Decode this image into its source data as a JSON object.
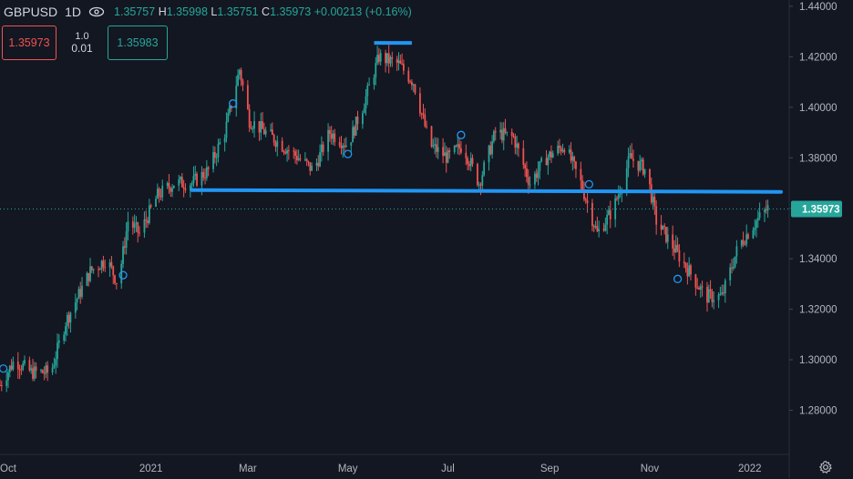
{
  "legend": {
    "symbol": "GBPUSD",
    "interval": "1D",
    "ohlc_text": "1.35757",
    "high_key": "H",
    "high": "1.35998",
    "low_key": "L",
    "low": "1.35751",
    "close_key": "C",
    "close": "1.35973",
    "change": "+0.00213 (+0.16%)"
  },
  "trade": {
    "sell_price": "1.35973",
    "lot": "1.0",
    "spread": "0.01",
    "buy_price": "1.35983"
  },
  "icons": {
    "eye": "eye-icon",
    "gear": "gear-icon"
  },
  "colors": {
    "background": "#131722",
    "up": "#26a69a",
    "down": "#ef5350",
    "level_line": "#2196f3",
    "price_tag": "#26a69a"
  },
  "chart_data": {
    "type": "candlestick",
    "y_ticks": [
      "1.44000",
      "1.42000",
      "1.40000",
      "1.38000",
      "1.36000",
      "1.34000",
      "1.32000",
      "1.30000",
      "1.28000"
    ],
    "y_tick_values": [
      1.44,
      1.42,
      1.4,
      1.38,
      1.36,
      1.34,
      1.32,
      1.3,
      1.28
    ],
    "ylim": [
      1.2625,
      1.4425
    ],
    "x_labels": [
      "Oct",
      "2021",
      "Mar",
      "May",
      "Jul",
      "Sep",
      "Nov",
      "2022"
    ],
    "x_label_dates": [
      "2020-10-01",
      "2021-01-01",
      "2021-03-01",
      "2021-05-01",
      "2021-07-01",
      "2021-09-01",
      "2021-11-01",
      "2022-01-01"
    ],
    "xlim": [
      "2020-10-01",
      "2022-01-25"
    ],
    "last_price": "1.35973",
    "last_price_value": 1.35973,
    "horizontal_line": {
      "start": "2021-01-26",
      "end": "2022-01-20",
      "value": 1.3665
    },
    "top_segment": {
      "start": "2021-05-17",
      "end": "2021-06-09",
      "value": 1.4255
    },
    "markers": [
      {
        "date": "2020-10-03",
        "value": 1.2965
      },
      {
        "date": "2020-12-15",
        "value": 1.3335
      },
      {
        "date": "2021-02-20",
        "value": 1.4015
      },
      {
        "date": "2021-05-01",
        "value": 1.3815
      },
      {
        "date": "2021-07-09",
        "value": 1.389
      },
      {
        "date": "2021-09-25",
        "value": 1.3695
      },
      {
        "date": "2021-11-18",
        "value": 1.332
      }
    ],
    "anchors": [
      [
        "2020-10-01",
        1.29
      ],
      [
        "2020-10-10",
        1.3
      ],
      [
        "2020-10-20",
        1.295
      ],
      [
        "2020-11-01",
        1.295
      ],
      [
        "2020-11-10",
        1.315
      ],
      [
        "2020-11-25",
        1.335
      ],
      [
        "2020-12-05",
        1.34
      ],
      [
        "2020-12-12",
        1.33
      ],
      [
        "2020-12-18",
        1.355
      ],
      [
        "2020-12-25",
        1.35
      ],
      [
        "2021-01-05",
        1.365
      ],
      [
        "2021-01-15",
        1.37
      ],
      [
        "2021-01-26",
        1.37
      ],
      [
        "2021-02-05",
        1.375
      ],
      [
        "2021-02-15",
        1.39
      ],
      [
        "2021-02-24",
        1.415
      ],
      [
        "2021-03-02",
        1.395
      ],
      [
        "2021-03-12",
        1.39
      ],
      [
        "2021-03-22",
        1.385
      ],
      [
        "2021-04-01",
        1.38
      ],
      [
        "2021-04-10",
        1.375
      ],
      [
        "2021-04-20",
        1.39
      ],
      [
        "2021-05-01",
        1.385
      ],
      [
        "2021-05-10",
        1.4
      ],
      [
        "2021-05-20",
        1.42
      ],
      [
        "2021-06-01",
        1.417
      ],
      [
        "2021-06-10",
        1.41
      ],
      [
        "2021-06-20",
        1.385
      ],
      [
        "2021-07-01",
        1.38
      ],
      [
        "2021-07-10",
        1.385
      ],
      [
        "2021-07-20",
        1.37
      ],
      [
        "2021-07-30",
        1.39
      ],
      [
        "2021-08-10",
        1.388
      ],
      [
        "2021-08-20",
        1.37
      ],
      [
        "2021-08-30",
        1.38
      ],
      [
        "2021-09-10",
        1.385
      ],
      [
        "2021-09-20",
        1.37
      ],
      [
        "2021-09-30",
        1.35
      ],
      [
        "2021-10-10",
        1.36
      ],
      [
        "2021-10-20",
        1.38
      ],
      [
        "2021-10-30",
        1.375
      ],
      [
        "2021-11-05",
        1.355
      ],
      [
        "2021-11-15",
        1.345
      ],
      [
        "2021-11-25",
        1.335
      ],
      [
        "2021-12-05",
        1.325
      ],
      [
        "2021-12-15",
        1.325
      ],
      [
        "2021-12-25",
        1.345
      ],
      [
        "2022-01-05",
        1.355
      ],
      [
        "2022-01-12",
        1.36
      ]
    ]
  }
}
